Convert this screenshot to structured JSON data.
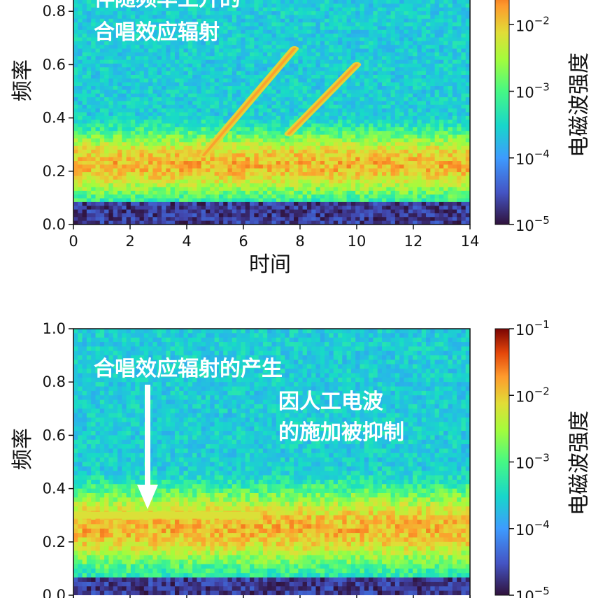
{
  "chart_data": [
    {
      "type": "heatmap",
      "title": "",
      "xlabel": "时间",
      "ylabel": "频率",
      "xlim": [
        0,
        14
      ],
      "ylim": [
        0,
        1.0
      ],
      "x_ticks": [
        "0",
        "2",
        "4",
        "6",
        "8",
        "10",
        "12",
        "14"
      ],
      "y_ticks": [
        "0.0",
        "0.2",
        "0.4",
        "0.6",
        "0.8"
      ],
      "colorbar": {
        "label": "电磁波强度",
        "scale": "log",
        "range": [
          1e-05,
          0.1
        ],
        "tick_labels": [
          {
            "base": "10",
            "exp": "−5"
          },
          {
            "base": "10",
            "exp": "−4"
          },
          {
            "base": "10",
            "exp": "−3"
          },
          {
            "base": "10",
            "exp": "−2"
          }
        ],
        "colormap": "turbo"
      },
      "features": [
        {
          "kind": "rising_tone",
          "start": [
            4.6,
            0.26
          ],
          "end": [
            7.8,
            0.66
          ]
        },
        {
          "kind": "rising_tone",
          "start": [
            7.6,
            0.34
          ],
          "end": [
            10.0,
            0.6
          ]
        },
        {
          "kind": "background_band",
          "freq_range": [
            0.1,
            0.35
          ],
          "level": 0.0001
        },
        {
          "kind": "low_floor",
          "freq_range": [
            0.0,
            0.08
          ],
          "level": 1e-05
        }
      ],
      "annotations": {
        "line1": "伴随频率上升的",
        "line2": "合唱效应辐射"
      }
    },
    {
      "type": "heatmap",
      "title": "",
      "xlabel": "",
      "ylabel": "频率",
      "xlim": [
        0,
        14
      ],
      "ylim": [
        0,
        1.0
      ],
      "y_ticks": [
        "0.0",
        "0.2",
        "0.4",
        "0.6",
        "0.8",
        "1.0"
      ],
      "colorbar": {
        "label": "电磁波强度",
        "scale": "log",
        "range": [
          1e-05,
          0.1
        ],
        "tick_labels": [
          {
            "base": "10",
            "exp": "−5"
          },
          {
            "base": "10",
            "exp": "−4"
          },
          {
            "base": "10",
            "exp": "−3"
          },
          {
            "base": "10",
            "exp": "−2"
          },
          {
            "base": "10",
            "exp": "−1"
          }
        ],
        "colormap": "turbo"
      },
      "features": [
        {
          "kind": "constant_tone",
          "freq": 0.3,
          "time_range": [
            0,
            6.6
          ]
        },
        {
          "kind": "background_band",
          "freq_range": [
            0.1,
            0.4
          ],
          "level": 0.0001
        },
        {
          "kind": "low_floor",
          "freq_range": [
            0.0,
            0.06
          ],
          "level": 1e-05
        }
      ],
      "annotations": {
        "line1": "合唱效应辐射的产生",
        "line2": "因人工电波",
        "line3": "的施加被抑制"
      }
    }
  ]
}
